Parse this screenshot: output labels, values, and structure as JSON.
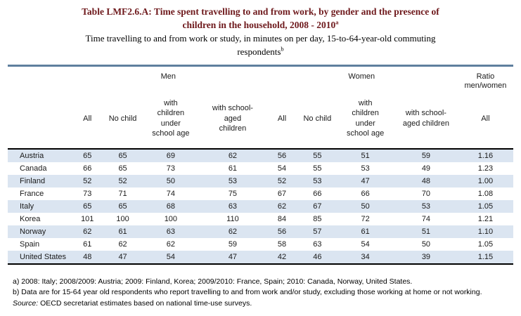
{
  "page": {
    "title_line1": "Table LMF2.6.A: Time spent travelling to and from work, by gender and the presence of",
    "title_line2": "children in the household, 2008 - 2010",
    "title_sup": "a",
    "subtitle_line1": "Time travelling to and from work or study, in minutes on per day, 15-to-64-year-old commuting",
    "subtitle_line2": "respondents",
    "subtitle_sup": "b"
  },
  "table": {
    "group_headers": {
      "men": "Men",
      "women": "Women",
      "ratio_line1": "Ratio",
      "ratio_line2": "men/women"
    },
    "column_headers": {
      "men_all": "All",
      "men_no_child": "No child",
      "men_children_under_school_age": "with\nchildren\nunder\nschool age",
      "men_school_aged_children": "with school-\naged\nchildren",
      "women_all": "All",
      "women_no_child": "No child",
      "women_children_under_school_age": "with\nchildren\nunder\nschool age",
      "women_school_aged_children": "with school-\naged children",
      "ratio_all": "All"
    },
    "rows": [
      {
        "country": "Austria",
        "men": [
          "65",
          "65",
          "69",
          "62"
        ],
        "women": [
          "56",
          "55",
          "51",
          "59"
        ],
        "ratio": "1.16"
      },
      {
        "country": "Canada",
        "men": [
          "66",
          "65",
          "73",
          "61"
        ],
        "women": [
          "54",
          "55",
          "53",
          "49"
        ],
        "ratio": "1.23"
      },
      {
        "country": "Finland",
        "men": [
          "52",
          "52",
          "50",
          "53"
        ],
        "women": [
          "52",
          "53",
          "47",
          "48"
        ],
        "ratio": "1.00"
      },
      {
        "country": "France",
        "men": [
          "73",
          "71",
          "74",
          "75"
        ],
        "women": [
          "67",
          "66",
          "66",
          "70"
        ],
        "ratio": "1.08"
      },
      {
        "country": "Italy",
        "men": [
          "65",
          "65",
          "68",
          "63"
        ],
        "women": [
          "62",
          "67",
          "50",
          "53"
        ],
        "ratio": "1.05"
      },
      {
        "country": "Korea",
        "men": [
          "101",
          "100",
          "100",
          "110"
        ],
        "women": [
          "84",
          "85",
          "72",
          "74"
        ],
        "ratio": "1.21"
      },
      {
        "country": "Norway",
        "men": [
          "62",
          "61",
          "63",
          "62"
        ],
        "women": [
          "56",
          "57",
          "61",
          "51"
        ],
        "ratio": "1.10"
      },
      {
        "country": "Spain",
        "men": [
          "61",
          "62",
          "62",
          "59"
        ],
        "women": [
          "58",
          "63",
          "54",
          "50"
        ],
        "ratio": "1.05"
      },
      {
        "country": "United States",
        "men": [
          "48",
          "47",
          "54",
          "47"
        ],
        "women": [
          "42",
          "46",
          "34",
          "39"
        ],
        "ratio": "1.15"
      }
    ]
  },
  "footnotes": {
    "a": "a) 2008: Italy; 2008/2009: Austria; 2009: Finland, Korea; 2009/2010: France, Spain; 2010: Canada, Norway, United States.",
    "b": "b) Data are for 15-64 year old respondents who report travelling to and from work and/or study, excluding those working at home or not working.",
    "source_label": "Source:",
    "source_text": " OECD secretariat estimates based on national time-use surveys."
  },
  "colors": {
    "title_text": "#6e191c",
    "row_band": "#dbe5f1",
    "top_border": "#5f7f9e",
    "header_divider": "#000000",
    "body_text": "#1a1a1a"
  }
}
